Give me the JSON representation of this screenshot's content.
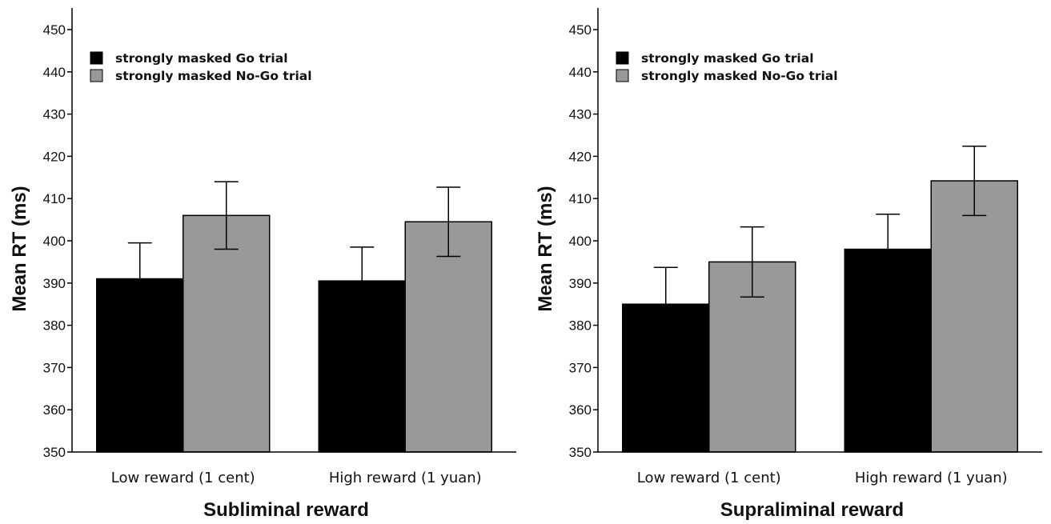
{
  "chart_data": [
    {
      "type": "bar",
      "title": "",
      "xlabel": "Subliminal reward",
      "ylabel": "Mean RT (ms)",
      "ylim": [
        350,
        450
      ],
      "yticks": [
        350,
        360,
        370,
        380,
        390,
        400,
        410,
        420,
        430,
        440,
        450
      ],
      "categories": [
        "Low reward (1 cent)",
        "High reward (1 yuan)"
      ],
      "legend_position": "top-left",
      "series": [
        {
          "name": "strongly masked Go trial",
          "color": "#000000",
          "values": [
            391,
            390.5
          ],
          "error": [
            8.5,
            8
          ]
        },
        {
          "name": "strongly masked No-Go trial",
          "color": "#999999",
          "values": [
            406,
            404.5
          ],
          "error": [
            8,
            8.2
          ]
        }
      ]
    },
    {
      "type": "bar",
      "title": "",
      "xlabel": "Supraliminal reward",
      "ylabel": "Mean RT (ms)",
      "ylim": [
        350,
        450
      ],
      "yticks": [
        350,
        360,
        370,
        380,
        390,
        400,
        410,
        420,
        430,
        440,
        450
      ],
      "categories": [
        "Low reward (1 cent)",
        "High reward (1 yuan)"
      ],
      "legend_position": "top-left",
      "series": [
        {
          "name": "strongly masked Go trial",
          "color": "#000000",
          "values": [
            385,
            398
          ],
          "error": [
            8.7,
            8.3
          ]
        },
        {
          "name": "strongly masked No-Go trial",
          "color": "#999999",
          "values": [
            395,
            414.2
          ],
          "error": [
            8.3,
            8.2
          ]
        }
      ]
    }
  ]
}
